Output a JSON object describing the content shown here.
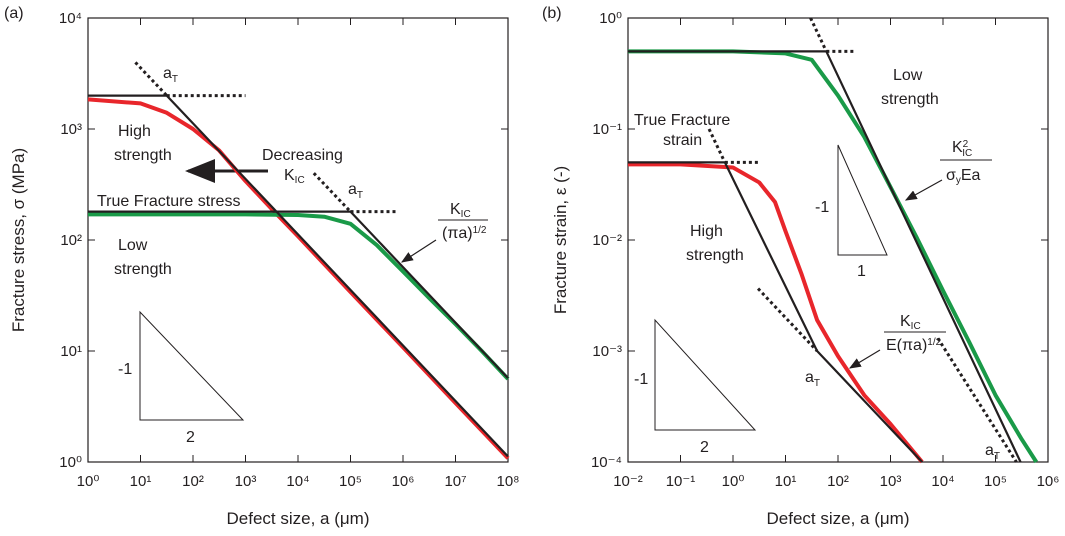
{
  "chart_data": [
    {
      "type": "line",
      "title": null,
      "x_label": "Defect size, a (μm)",
      "y_label": "Fracture stress, σ (MPa)",
      "xscale": "log",
      "yscale": "log",
      "grid": false,
      "xlim": [
        1,
        100000000
      ],
      "ylim": [
        1,
        10000
      ],
      "xticks": [
        {
          "value": 1,
          "label": "10⁰"
        },
        {
          "value": 10,
          "label": "10¹"
        },
        {
          "value": 100,
          "label": "10²"
        },
        {
          "value": 1000,
          "label": "10³"
        },
        {
          "value": 10000,
          "label": "10⁴"
        },
        {
          "value": 100000,
          "label": "10⁵"
        },
        {
          "value": 1000000,
          "label": "10⁶"
        },
        {
          "value": 10000000,
          "label": "10⁷"
        },
        {
          "value": 100000000,
          "label": "10⁸"
        }
      ],
      "yticks": [
        {
          "value": 1,
          "label": "10⁰"
        },
        {
          "value": 10,
          "label": "10¹"
        },
        {
          "value": 100,
          "label": "10²"
        },
        {
          "value": 1000,
          "label": "10³"
        },
        {
          "value": 10000,
          "label": "10⁴"
        }
      ],
      "series": [
        {
          "color": "#e8262b",
          "style": "solid",
          "x": [
            1,
            10,
            31.6,
            100,
            316,
            1000,
            3162,
            10000,
            100000,
            1000000,
            10000000,
            100000000
          ],
          "values": [
            1850,
            1700,
            1400,
            1000,
            640,
            340,
            190,
            108,
            34,
            10.8,
            3.4,
            1.08
          ]
        },
        {
          "color": "#1a9a48",
          "style": "solid",
          "x": [
            1,
            10,
            100,
            1000,
            10000,
            31623,
            100000,
            316228,
            1000000,
            3162278,
            10000000,
            31622777,
            100000000
          ],
          "values": [
            170,
            170,
            170,
            170,
            168,
            162,
            140,
            90,
            52,
            30,
            17.5,
            10,
            5.6
          ]
        },
        {
          "color": "#231f20",
          "style": "solid",
          "x": [
            1,
            31.6,
            100000000
          ],
          "values": [
            2000,
            2000,
            1.12
          ]
        },
        {
          "color": "#231f20",
          "style": "dotted",
          "x": [
            31.6,
            1000
          ],
          "values": [
            2000,
            2000
          ]
        },
        {
          "color": "#231f20",
          "style": "dotted",
          "x": [
            8,
            31.6
          ],
          "values": [
            3980,
            2000
          ]
        },
        {
          "color": "#231f20",
          "style": "solid",
          "x": [
            1,
            100000,
            100000000
          ],
          "values": [
            180,
            180,
            5.7
          ]
        },
        {
          "color": "#231f20",
          "style": "dotted",
          "x": [
            100000,
            800000
          ],
          "values": [
            180,
            180
          ]
        },
        {
          "color": "#231f20",
          "style": "dotted",
          "x": [
            20000,
            100000
          ],
          "values": [
            400,
            180
          ]
        }
      ],
      "annotations": [
        "(a)",
        "High",
        "strength",
        "Decreasing",
        "K",
        "IC",
        "True Fracture stress",
        "Low",
        "strength",
        "a",
        "T",
        "a",
        "T",
        "K",
        "IC",
        "(πa)",
        "1/2",
        "-1",
        "2"
      ]
    },
    {
      "type": "line",
      "title": null,
      "x_label": "Defect size, a (μm)",
      "y_label": "Fracture strain, ε (-)",
      "xscale": "log",
      "yscale": "log",
      "grid": false,
      "xlim": [
        0.01,
        1000000
      ],
      "ylim": [
        0.0001,
        1
      ],
      "xticks": [
        {
          "value": 0.01,
          "label": "10⁻²"
        },
        {
          "value": 0.1,
          "label": "10⁻¹"
        },
        {
          "value": 1,
          "label": "10⁰"
        },
        {
          "value": 10,
          "label": "10¹"
        },
        {
          "value": 100,
          "label": "10²"
        },
        {
          "value": 1000,
          "label": "10³"
        },
        {
          "value": 10000,
          "label": "10⁴"
        },
        {
          "value": 100000,
          "label": "10⁵"
        },
        {
          "value": 1000000,
          "label": "10⁶"
        }
      ],
      "yticks": [
        {
          "value": 0.0001,
          "label": "10⁻⁴"
        },
        {
          "value": 0.001,
          "label": "10⁻³"
        },
        {
          "value": 0.01,
          "label": "10⁻²"
        },
        {
          "value": 0.1,
          "label": "10⁻¹"
        },
        {
          "value": 1,
          "label": "10⁰"
        }
      ],
      "series": [
        {
          "color": "#1a9a48",
          "style": "solid",
          "x": [
            0.01,
            0.1,
            1,
            10,
            31.6,
            100,
            316,
            1000,
            3162,
            10000,
            31623,
            100000,
            316228,
            600000
          ],
          "values": [
            0.5,
            0.5,
            0.5,
            0.48,
            0.42,
            0.2,
            0.085,
            0.03,
            0.0105,
            0.0035,
            0.0012,
            0.0004,
            0.00016,
            0.0001
          ]
        },
        {
          "color": "#e8262b",
          "style": "solid",
          "x": [
            0.01,
            0.1,
            1,
            3.16,
            6.3,
            10,
            20,
            40,
            100,
            316,
            1000,
            4000
          ],
          "values": [
            0.048,
            0.048,
            0.045,
            0.033,
            0.022,
            0.012,
            0.005,
            0.0019,
            0.0009,
            0.0004,
            0.00022,
            0.0001
          ]
        },
        {
          "color": "#231f20",
          "style": "solid",
          "x": [
            0.01,
            60,
            300000
          ],
          "values": [
            0.5,
            0.5,
            0.0001
          ]
        },
        {
          "color": "#231f20",
          "style": "dotted",
          "x": [
            60,
            200
          ],
          "values": [
            0.5,
            0.5
          ]
        },
        {
          "color": "#231f20",
          "style": "dotted",
          "x": [
            30,
            60
          ],
          "values": [
            1,
            0.5
          ]
        },
        {
          "color": "#231f20",
          "style": "solid",
          "x": [
            0.01,
            0.7,
            40,
            4000
          ],
          "values": [
            0.05,
            0.05,
            0.001,
            0.0001
          ]
        },
        {
          "color": "#231f20",
          "style": "dotted",
          "x": [
            0.7,
            3
          ],
          "values": [
            0.05,
            0.05
          ]
        },
        {
          "color": "#231f20",
          "style": "dotted",
          "x": [
            0.35,
            0.7
          ],
          "values": [
            0.1,
            0.05
          ]
        },
        {
          "color": "#231f20",
          "style": "dotted",
          "x": [
            3,
            40
          ],
          "values": [
            0.00365,
            0.001
          ]
        },
        {
          "color": "#231f20",
          "style": "dotted",
          "x": [
            8000,
            250000
          ],
          "values": [
            0.0013,
            0.0001
          ]
        }
      ],
      "annotations": [
        "(b)",
        "Low",
        "strength",
        "True Fracture",
        "strain",
        "High",
        "strength",
        "K",
        "2",
        "IC",
        "σ",
        "y",
        "Ea",
        "-1",
        "1",
        "K",
        "IC",
        "E(πa)",
        "1/2",
        "a",
        "T",
        "a",
        "T",
        "-1",
        "2"
      ]
    }
  ]
}
